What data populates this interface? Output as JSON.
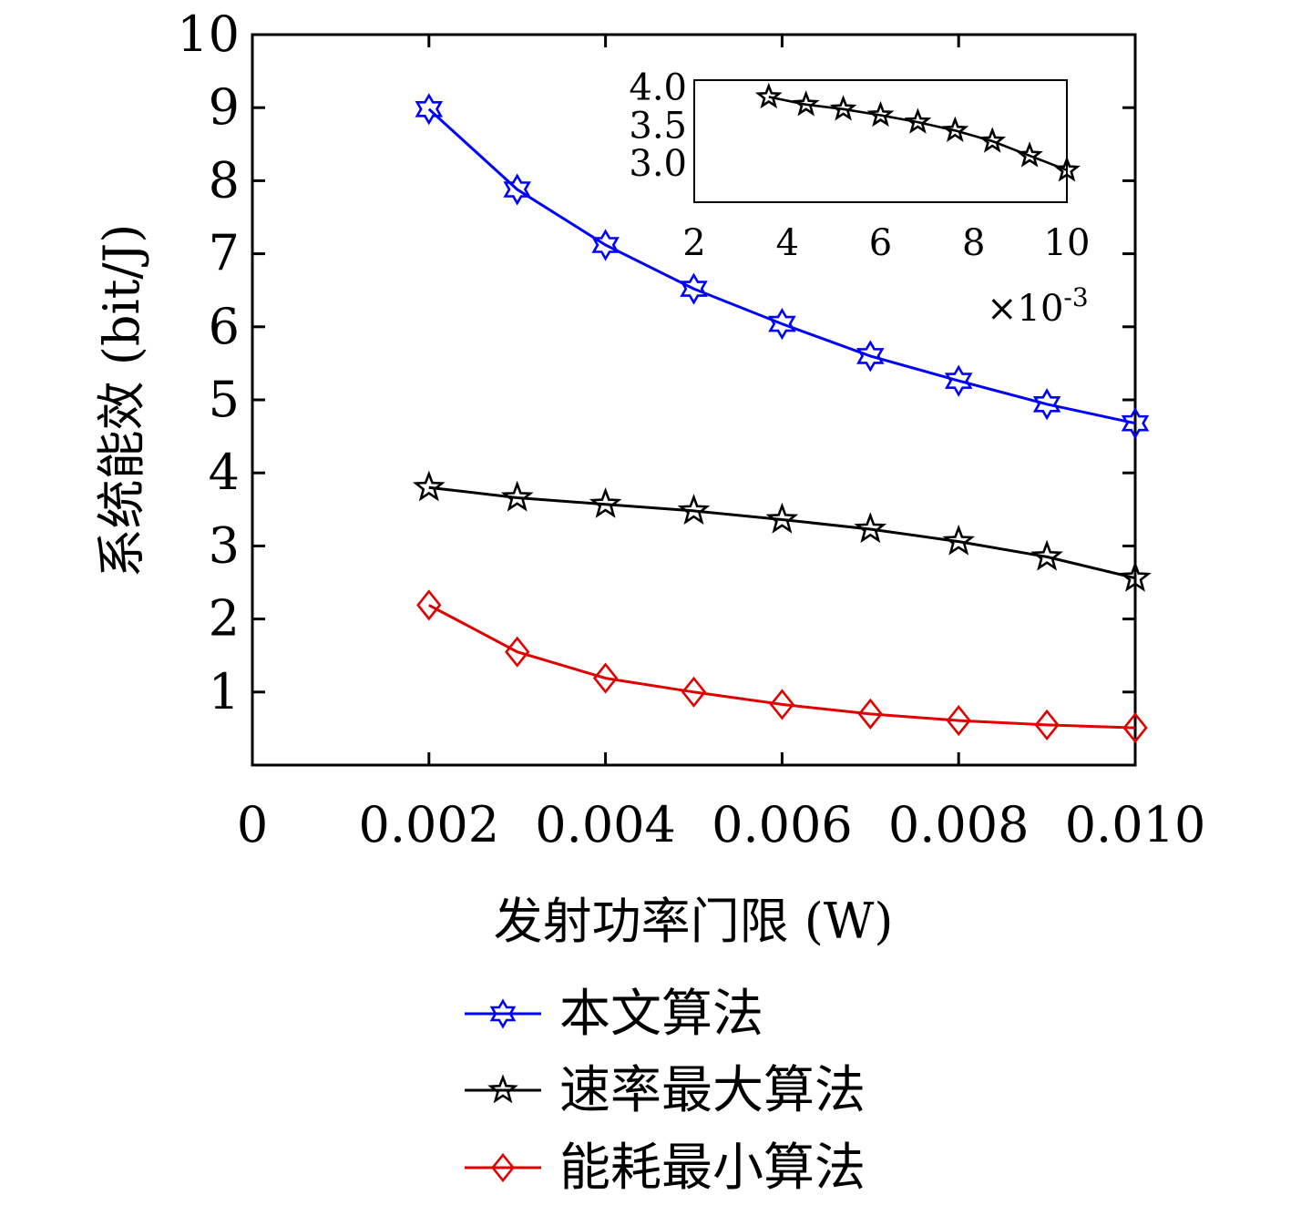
{
  "chart_data": [
    {
      "type": "line",
      "xlabel": "发射功率门限 (W)",
      "ylabel": "系统能效 (bit/J)",
      "xlim": [
        0,
        0.01
      ],
      "ylim": [
        0,
        10
      ],
      "x_ticks": [
        "0",
        "0.002",
        "0.004",
        "0.006",
        "0.008",
        "0.010"
      ],
      "y_ticks": [
        "1",
        "2",
        "3",
        "4",
        "5",
        "6",
        "7",
        "8",
        "9",
        "10"
      ],
      "x": [
        0.002,
        0.003,
        0.004,
        0.005,
        0.006,
        0.007,
        0.008,
        0.009,
        0.01
      ],
      "legend_position": "below",
      "series": [
        {
          "name": "本文算法",
          "color": "#0000ff",
          "marker": "hexagram",
          "values": [
            8.98,
            7.88,
            7.12,
            6.52,
            6.04,
            5.6,
            5.26,
            4.94,
            4.68
          ]
        },
        {
          "name": "速率最大算法",
          "color": "#000000",
          "marker": "pentagram",
          "values": [
            3.8,
            3.66,
            3.57,
            3.48,
            3.36,
            3.23,
            3.06,
            2.85,
            2.56
          ]
        },
        {
          "name": "能耗最小算法",
          "color": "#e00000",
          "marker": "diamond",
          "values": [
            2.19,
            1.55,
            1.19,
            1.0,
            0.83,
            0.7,
            0.61,
            0.55,
            0.51
          ]
        }
      ]
    },
    {
      "type": "line",
      "role": "inset",
      "xlim": [
        2,
        10
      ],
      "ylim": [
        2.5,
        4.1
      ],
      "x_ticks": [
        "2",
        "4",
        "6",
        "8",
        "10"
      ],
      "y_ticks": [
        "3.0",
        "3.5",
        "4.0"
      ],
      "x_multiplier": "×10",
      "x_multiplier_exp": "-3",
      "x": [
        3.6,
        4.4,
        5.2,
        6.0,
        6.8,
        7.6,
        8.4,
        9.2,
        10.0
      ],
      "series": [
        {
          "color": "#000000",
          "marker": "pentagram",
          "values": [
            3.88,
            3.78,
            3.72,
            3.64,
            3.55,
            3.44,
            3.3,
            3.11,
            2.92
          ]
        }
      ]
    }
  ]
}
